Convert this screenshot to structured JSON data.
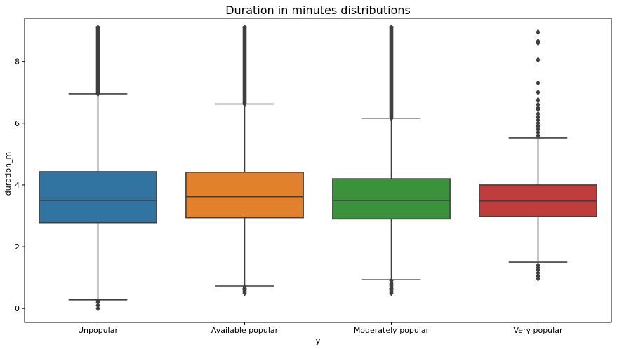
{
  "chart_data": {
    "type": "boxplot",
    "title": "Duration in minutes distributions",
    "xlabel": "y",
    "ylabel": "duration_m",
    "ylim": [
      -0.45,
      9.4
    ],
    "yticks": [
      0,
      2,
      4,
      6,
      8
    ],
    "grid": false,
    "categories": [
      "Unpopular",
      "Available popular",
      "Moderately popular",
      "Very popular"
    ],
    "colors": [
      "#3274a1",
      "#e1812c",
      "#3a923a",
      "#c03d3e"
    ],
    "edge_color": "#3f3f3f",
    "boxes": [
      {
        "category": "Unpopular",
        "whisker_low": 0.28,
        "q1": 2.78,
        "median": 3.5,
        "q3": 4.43,
        "whisker_high": 6.95,
        "outliers_low": [
          0.0,
          0.1,
          0.2,
          0.25
        ],
        "outliers_high_band": [
          6.95,
          9.1
        ]
      },
      {
        "category": "Available popular",
        "whisker_low": 0.73,
        "q1": 2.94,
        "median": 3.62,
        "q3": 4.41,
        "whisker_high": 6.62,
        "outliers_low": [
          0.5,
          0.55,
          0.6,
          0.65,
          0.7
        ],
        "outliers_high_band": [
          6.62,
          9.1
        ]
      },
      {
        "category": "Moderately popular",
        "whisker_low": 0.93,
        "q1": 2.9,
        "median": 3.5,
        "q3": 4.2,
        "whisker_high": 6.16,
        "outliers_low": [
          0.5,
          0.55,
          0.6,
          0.65,
          0.7,
          0.75,
          0.8,
          0.85,
          0.9
        ],
        "outliers_high_band": [
          6.16,
          9.1
        ]
      },
      {
        "category": "Very popular",
        "whisker_low": 1.5,
        "q1": 2.98,
        "median": 3.48,
        "q3": 4.0,
        "whisker_high": 5.52,
        "outliers_low": [
          0.97,
          1.05,
          1.15,
          1.25,
          1.32,
          1.4
        ],
        "outliers_high": [
          5.6,
          5.7,
          5.8,
          5.9,
          6.0,
          6.1,
          6.2,
          6.3,
          6.45,
          6.5,
          6.6,
          6.75,
          7.0,
          7.3,
          8.05,
          8.6,
          8.65,
          8.95
        ]
      }
    ]
  }
}
